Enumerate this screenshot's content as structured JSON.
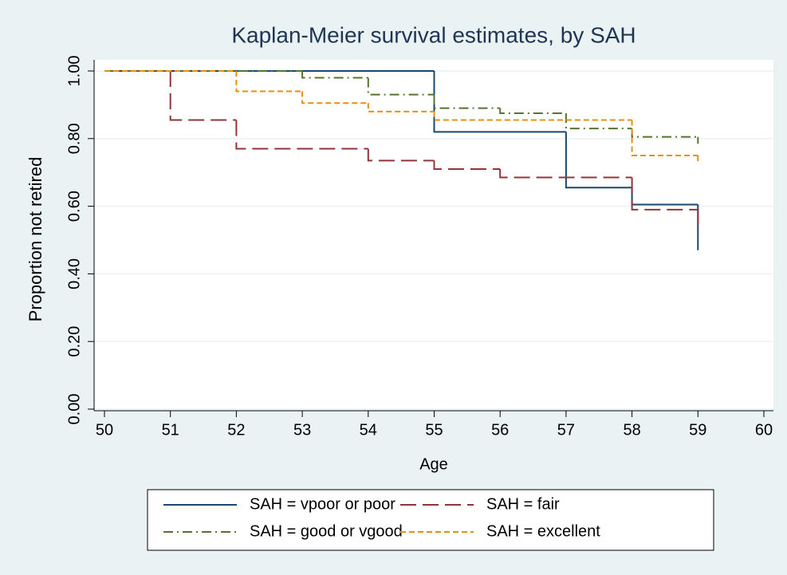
{
  "chart_data": {
    "type": "step",
    "title": "Kaplan-Meier survival estimates, by SAH",
    "xlabel": "Age",
    "ylabel": "Proportion not retired",
    "xlim": [
      50,
      60
    ],
    "xticks": [
      50,
      51,
      52,
      53,
      54,
      55,
      56,
      57,
      58,
      59,
      60
    ],
    "ylim": [
      0,
      1
    ],
    "yticks": [
      {
        "value": 0,
        "label": "0.00"
      },
      {
        "value": 0.2,
        "label": "0.20"
      },
      {
        "value": 0.4,
        "label": "0.40"
      },
      {
        "value": 0.6,
        "label": "0.60"
      },
      {
        "value": 0.8,
        "label": "0.80"
      },
      {
        "value": 1,
        "label": "1.00"
      }
    ],
    "grid": true,
    "series": [
      {
        "name": "SAH = vpoor or poor",
        "color": "#1a476f",
        "dash": "none",
        "x": [
          50,
          55,
          57,
          58,
          59
        ],
        "values": [
          1.0,
          0.82,
          0.655,
          0.605,
          0.47
        ]
      },
      {
        "name": "SAH = fair",
        "color": "#90353b",
        "dash": "20 8",
        "x": [
          50,
          51,
          52,
          54,
          55,
          56,
          58,
          59
        ],
        "values": [
          1.0,
          0.855,
          0.77,
          0.735,
          0.71,
          0.685,
          0.59,
          0.52
        ]
      },
      {
        "name": "SAH = good or vgood",
        "color": "#55752f",
        "dash": "12 5 2 5",
        "x": [
          50,
          53,
          54,
          55,
          56,
          57,
          58,
          59
        ],
        "values": [
          1.0,
          0.98,
          0.93,
          0.89,
          0.875,
          0.83,
          0.805,
          0.785
        ]
      },
      {
        "name": "SAH = excellent",
        "color": "#e8900c",
        "dash": "7 4",
        "x": [
          50,
          52,
          53,
          54,
          55,
          58,
          59
        ],
        "values": [
          1.0,
          0.94,
          0.905,
          0.88,
          0.855,
          0.75,
          0.725
        ]
      }
    ]
  }
}
